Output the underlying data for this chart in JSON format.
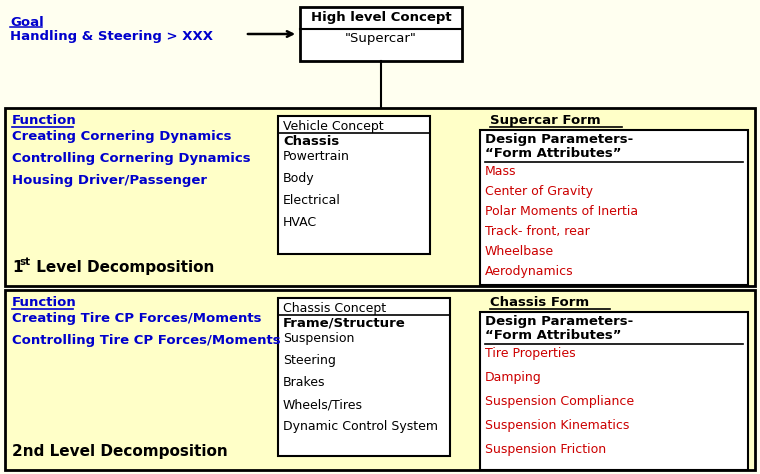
{
  "bg_color": "#FFFFF0",
  "panel_bg": "#FFFFC8",
  "blue": "#0000CC",
  "red": "#CC0000",
  "black": "#000000",
  "goal_text_1": "Goal",
  "goal_text_2": "Handling & Steering > XXX",
  "title_box_top": "High level Concept",
  "title_box_bot": "\"Supercar\"",
  "panel1": {
    "function_label": "Function",
    "function_items": [
      "Creating Cornering Dynamics",
      "Controlling Cornering Dynamics",
      "Housing Driver/Passenger"
    ],
    "decomp_num": "1",
    "decomp_sup": "st",
    "decomp_rest": " Level Decomposition",
    "concept_label": "Vehicle Concept",
    "concept_bold": "Chassis",
    "concept_items": [
      "Powertrain",
      "Body",
      "Electrical",
      "HVAC"
    ],
    "form_header": "Supercar Form",
    "param_bold1": "Design Parameters-",
    "param_bold2": "“Form Attributes”",
    "param_items": [
      "Mass",
      "Center of Gravity",
      "Polar Moments of Inertia",
      "Track- front, rear",
      "Wheelbase",
      "Aerodynamics"
    ]
  },
  "panel2": {
    "function_label": "Function",
    "function_items": [
      "Creating Tire CP Forces/Moments",
      "Controlling Tire CP Forces/Moments"
    ],
    "decomp_label": "2nd Level Decomposition",
    "concept_label": "Chassis Concept",
    "concept_bold": "Frame/Structure",
    "concept_items": [
      "Suspension",
      "Steering",
      "Brakes",
      "Wheels/Tires",
      "Dynamic Control System"
    ],
    "form_header": "Chassis Form",
    "param_bold1": "Design Parameters-",
    "param_bold2": "“Form Attributes”",
    "param_items": [
      "Tire Properties",
      "Damping",
      "Suspension Compliance",
      "Suspension Kinematics",
      "Suspension Friction"
    ]
  }
}
